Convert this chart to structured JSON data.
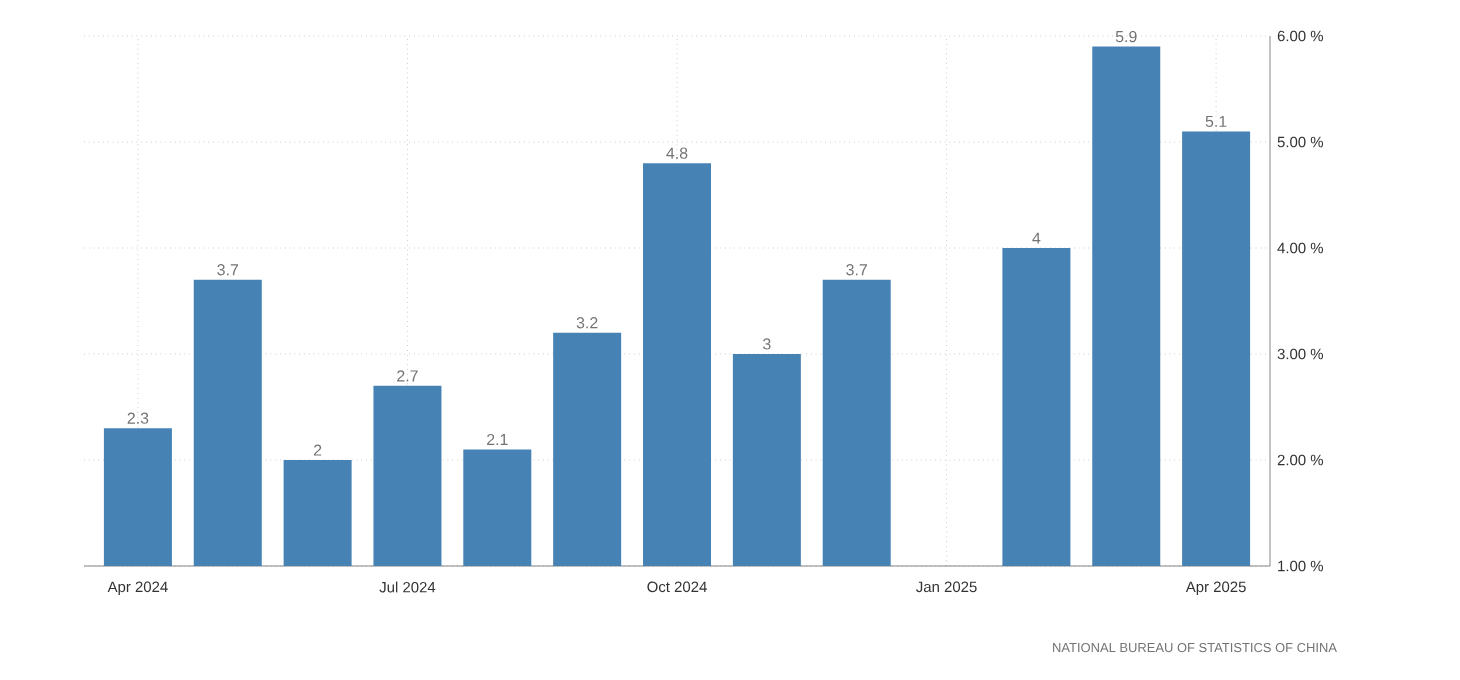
{
  "chart_data": {
    "type": "bar",
    "categories": [
      "Apr 2024",
      null,
      null,
      "Jul 2024",
      null,
      null,
      "Oct 2024",
      null,
      null,
      "Jan 2025",
      null,
      null,
      "Apr 2025"
    ],
    "values": [
      2.3,
      3.7,
      2,
      2.7,
      2.1,
      3.2,
      4.8,
      3,
      3.7,
      null,
      4,
      5.9,
      5.1
    ],
    "color": "#4682b4",
    "ylim": [
      1,
      6
    ],
    "yticks": [
      {
        "value": 1,
        "label": "1.00 %"
      },
      {
        "value": 2,
        "label": "2.00 %"
      },
      {
        "value": 3,
        "label": "3.00 %"
      },
      {
        "value": 4,
        "label": "4.00 %"
      },
      {
        "value": 5,
        "label": "5.00 %"
      },
      {
        "value": 6,
        "label": "6.00 %"
      }
    ],
    "grid": true,
    "data_labels": true,
    "annotations": [
      "NATIONAL BUREAU OF STATISTICS OF CHINA"
    ]
  }
}
